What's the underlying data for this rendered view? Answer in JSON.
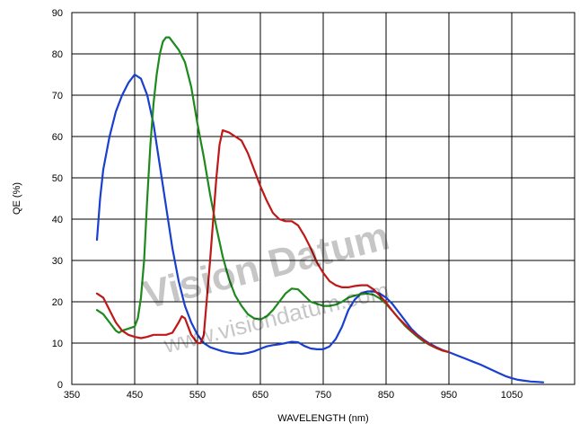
{
  "chart_data": {
    "type": "line",
    "title": "",
    "xlabel": "WAVELENGTH (nm)",
    "ylabel": "QE (%)",
    "xlim": [
      350,
      1150
    ],
    "ylim": [
      0,
      90
    ],
    "xticks": [
      350,
      450,
      550,
      650,
      750,
      850,
      950,
      1050
    ],
    "yticks": [
      0,
      10,
      20,
      30,
      40,
      50,
      60,
      70,
      80,
      90
    ],
    "grid": true,
    "legend": "none",
    "series": [
      {
        "color": "#1a3fcf",
        "points": [
          [
            390,
            35
          ],
          [
            395,
            45
          ],
          [
            400,
            52
          ],
          [
            410,
            60
          ],
          [
            420,
            66
          ],
          [
            430,
            70
          ],
          [
            440,
            73
          ],
          [
            450,
            75
          ],
          [
            460,
            74
          ],
          [
            470,
            70
          ],
          [
            480,
            63
          ],
          [
            490,
            53
          ],
          [
            500,
            43
          ],
          [
            510,
            33
          ],
          [
            520,
            25
          ],
          [
            530,
            19
          ],
          [
            540,
            15
          ],
          [
            550,
            12
          ],
          [
            560,
            10
          ],
          [
            570,
            9
          ],
          [
            580,
            8.5
          ],
          [
            590,
            8
          ],
          [
            600,
            7.7
          ],
          [
            610,
            7.5
          ],
          [
            620,
            7.4
          ],
          [
            630,
            7.6
          ],
          [
            640,
            8
          ],
          [
            650,
            8.6
          ],
          [
            660,
            9.2
          ],
          [
            670,
            9.5
          ],
          [
            680,
            9.7
          ],
          [
            690,
            10
          ],
          [
            700,
            10.3
          ],
          [
            710,
            10.2
          ],
          [
            720,
            9.3
          ],
          [
            730,
            8.7
          ],
          [
            740,
            8.5
          ],
          [
            750,
            8.5
          ],
          [
            760,
            9.2
          ],
          [
            770,
            11
          ],
          [
            780,
            14
          ],
          [
            790,
            18
          ],
          [
            800,
            20.5
          ],
          [
            810,
            22
          ],
          [
            820,
            22.5
          ],
          [
            830,
            22.5
          ],
          [
            840,
            22
          ],
          [
            850,
            21
          ],
          [
            860,
            19.5
          ],
          [
            870,
            17.5
          ],
          [
            880,
            15.5
          ],
          [
            890,
            13.5
          ],
          [
            900,
            12
          ],
          [
            910,
            10.8
          ],
          [
            920,
            9.8
          ],
          [
            930,
            9
          ],
          [
            940,
            8.3
          ],
          [
            950,
            7.8
          ],
          [
            960,
            7.2
          ],
          [
            970,
            6.6
          ],
          [
            980,
            6
          ],
          [
            990,
            5.4
          ],
          [
            1000,
            4.8
          ],
          [
            1010,
            4.1
          ],
          [
            1020,
            3.4
          ],
          [
            1030,
            2.7
          ],
          [
            1040,
            2
          ],
          [
            1050,
            1.5
          ],
          [
            1060,
            1.1
          ],
          [
            1070,
            0.9
          ],
          [
            1080,
            0.7
          ],
          [
            1090,
            0.6
          ],
          [
            1100,
            0.5
          ]
        ]
      },
      {
        "color": "#1e8a1e",
        "points": [
          [
            390,
            18
          ],
          [
            400,
            17
          ],
          [
            410,
            15
          ],
          [
            420,
            13
          ],
          [
            425,
            12.5
          ],
          [
            430,
            13
          ],
          [
            440,
            13.5
          ],
          [
            450,
            14
          ],
          [
            455,
            16
          ],
          [
            460,
            21
          ],
          [
            465,
            30
          ],
          [
            470,
            45
          ],
          [
            475,
            58
          ],
          [
            480,
            68
          ],
          [
            485,
            75
          ],
          [
            490,
            80
          ],
          [
            495,
            83
          ],
          [
            500,
            84
          ],
          [
            505,
            84
          ],
          [
            510,
            83
          ],
          [
            520,
            81
          ],
          [
            530,
            78
          ],
          [
            540,
            72
          ],
          [
            550,
            63
          ],
          [
            560,
            55
          ],
          [
            570,
            46
          ],
          [
            580,
            38
          ],
          [
            590,
            31
          ],
          [
            600,
            25.5
          ],
          [
            610,
            21.5
          ],
          [
            620,
            19
          ],
          [
            630,
            17
          ],
          [
            640,
            16
          ],
          [
            650,
            15.7
          ],
          [
            660,
            16.5
          ],
          [
            670,
            18
          ],
          [
            680,
            20
          ],
          [
            690,
            22
          ],
          [
            700,
            23.2
          ],
          [
            710,
            23
          ],
          [
            720,
            21.5
          ],
          [
            730,
            20
          ],
          [
            740,
            19.5
          ],
          [
            750,
            19
          ],
          [
            760,
            19
          ],
          [
            770,
            19.3
          ],
          [
            780,
            20
          ],
          [
            790,
            21
          ],
          [
            800,
            21.5
          ],
          [
            810,
            21.8
          ],
          [
            820,
            22
          ],
          [
            830,
            21.7
          ],
          [
            840,
            20.8
          ],
          [
            850,
            19.5
          ],
          [
            860,
            17.8
          ],
          [
            870,
            16
          ],
          [
            880,
            14.2
          ],
          [
            890,
            12.8
          ],
          [
            900,
            11.5
          ],
          [
            910,
            10.4
          ],
          [
            920,
            9.5
          ],
          [
            930,
            8.8
          ],
          [
            940,
            8.2
          ],
          [
            950,
            7.8
          ]
        ]
      },
      {
        "color": "#c01818",
        "points": [
          [
            390,
            22
          ],
          [
            400,
            21
          ],
          [
            410,
            18
          ],
          [
            420,
            15
          ],
          [
            430,
            13
          ],
          [
            440,
            12
          ],
          [
            450,
            11.5
          ],
          [
            460,
            11.2
          ],
          [
            470,
            11.5
          ],
          [
            480,
            12
          ],
          [
            490,
            12
          ],
          [
            500,
            12
          ],
          [
            510,
            12.5
          ],
          [
            520,
            15
          ],
          [
            525,
            16.5
          ],
          [
            530,
            16
          ],
          [
            540,
            12
          ],
          [
            545,
            11
          ],
          [
            550,
            10
          ],
          [
            555,
            10
          ],
          [
            560,
            12
          ],
          [
            570,
            30
          ],
          [
            580,
            50
          ],
          [
            585,
            58
          ],
          [
            590,
            61.5
          ],
          [
            600,
            61
          ],
          [
            610,
            60
          ],
          [
            620,
            59
          ],
          [
            630,
            56
          ],
          [
            640,
            52
          ],
          [
            650,
            48
          ],
          [
            660,
            44.5
          ],
          [
            670,
            41.5
          ],
          [
            680,
            40
          ],
          [
            690,
            39.5
          ],
          [
            700,
            39.5
          ],
          [
            710,
            38.5
          ],
          [
            720,
            36
          ],
          [
            730,
            33
          ],
          [
            740,
            29.5
          ],
          [
            750,
            27
          ],
          [
            760,
            25
          ],
          [
            770,
            24
          ],
          [
            780,
            23.5
          ],
          [
            790,
            23.5
          ],
          [
            800,
            23.8
          ],
          [
            810,
            24
          ],
          [
            820,
            24
          ],
          [
            830,
            23
          ],
          [
            840,
            21.5
          ],
          [
            850,
            19.8
          ],
          [
            860,
            17.8
          ],
          [
            870,
            16
          ],
          [
            880,
            14.5
          ],
          [
            890,
            13
          ],
          [
            900,
            11.8
          ],
          [
            910,
            10.6
          ],
          [
            920,
            9.6
          ],
          [
            930,
            8.8
          ],
          [
            940,
            8.2
          ],
          [
            950,
            7.8
          ]
        ]
      }
    ]
  },
  "watermark": {
    "brand": "Vision Datum",
    "url": "www.visiondatum.com"
  }
}
